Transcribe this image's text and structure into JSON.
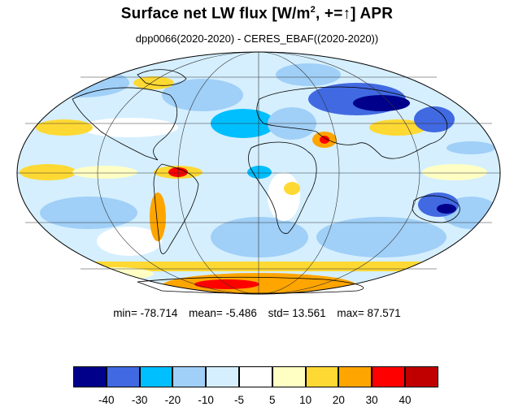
{
  "title": {
    "main": "Surface net LW flux [W/m",
    "sup": "2",
    "rest": ", +=↑]  APR"
  },
  "subtitle": "dpp0066(2020-2020) - CERES_EBAF((2020-2020))",
  "stats": {
    "min_label": "min=",
    "min": "-78.714",
    "mean_label": "mean=",
    "mean": "-5.486",
    "std_label": "std=",
    "std": "13.561",
    "max_label": "max=",
    "max": "87.571"
  },
  "colorbar": {
    "colors": [
      "#00008b",
      "#4169e1",
      "#00bfff",
      "#a0cff7",
      "#d5efff",
      "#ffffff",
      "#ffffc4",
      "#ffd933",
      "#ffa500",
      "#ff0000",
      "#c00000"
    ],
    "ticks": [
      "-40",
      "-30",
      "-20",
      "-10",
      "-5",
      "5",
      "10",
      "20",
      "30",
      "40"
    ]
  }
}
